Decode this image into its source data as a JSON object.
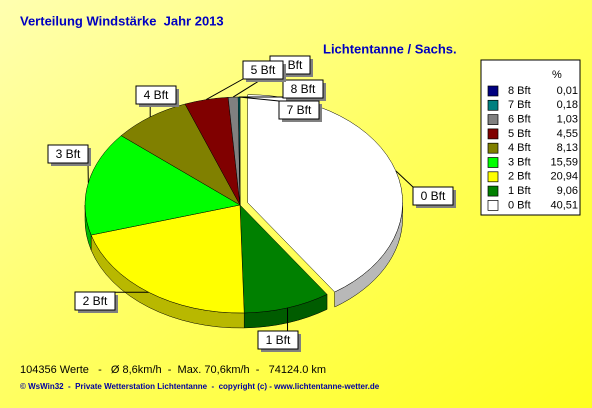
{
  "chart_data": {
    "type": "pie3d",
    "title": "Verteilung Windstärke  Jahr 2013",
    "subtitle": "Lichtentanne / Sachs.",
    "legend_header": "%",
    "categories": [
      "8 Bft",
      "7 Bft",
      "6 Bft",
      "5 Bft",
      "4 Bft",
      "3 Bft",
      "2 Bft",
      "1 Bft",
      "0 Bft"
    ],
    "values": [
      0.01,
      0.18,
      1.03,
      4.55,
      8.13,
      15.59,
      20.94,
      9.06,
      40.51
    ],
    "value_labels": [
      "0,01",
      "0,18",
      "1,03",
      "4,55",
      "8,13",
      "15,59",
      "20,94",
      "9,06",
      "40,51"
    ],
    "colors": [
      "#000080",
      "#008080",
      "#808080",
      "#800000",
      "#808000",
      "#00ff00",
      "#ffff00",
      "#008000",
      "#ffffff"
    ],
    "footer": "104356 Werte   -   Ø 8,6km/h  -  Max. 70,6km/h  -   74124.0 km",
    "copyright": "© WsWin32  -  Private Wetterstation Lichtentanne  -  copyright (c) - www.lichtentanne-wetter.de"
  }
}
